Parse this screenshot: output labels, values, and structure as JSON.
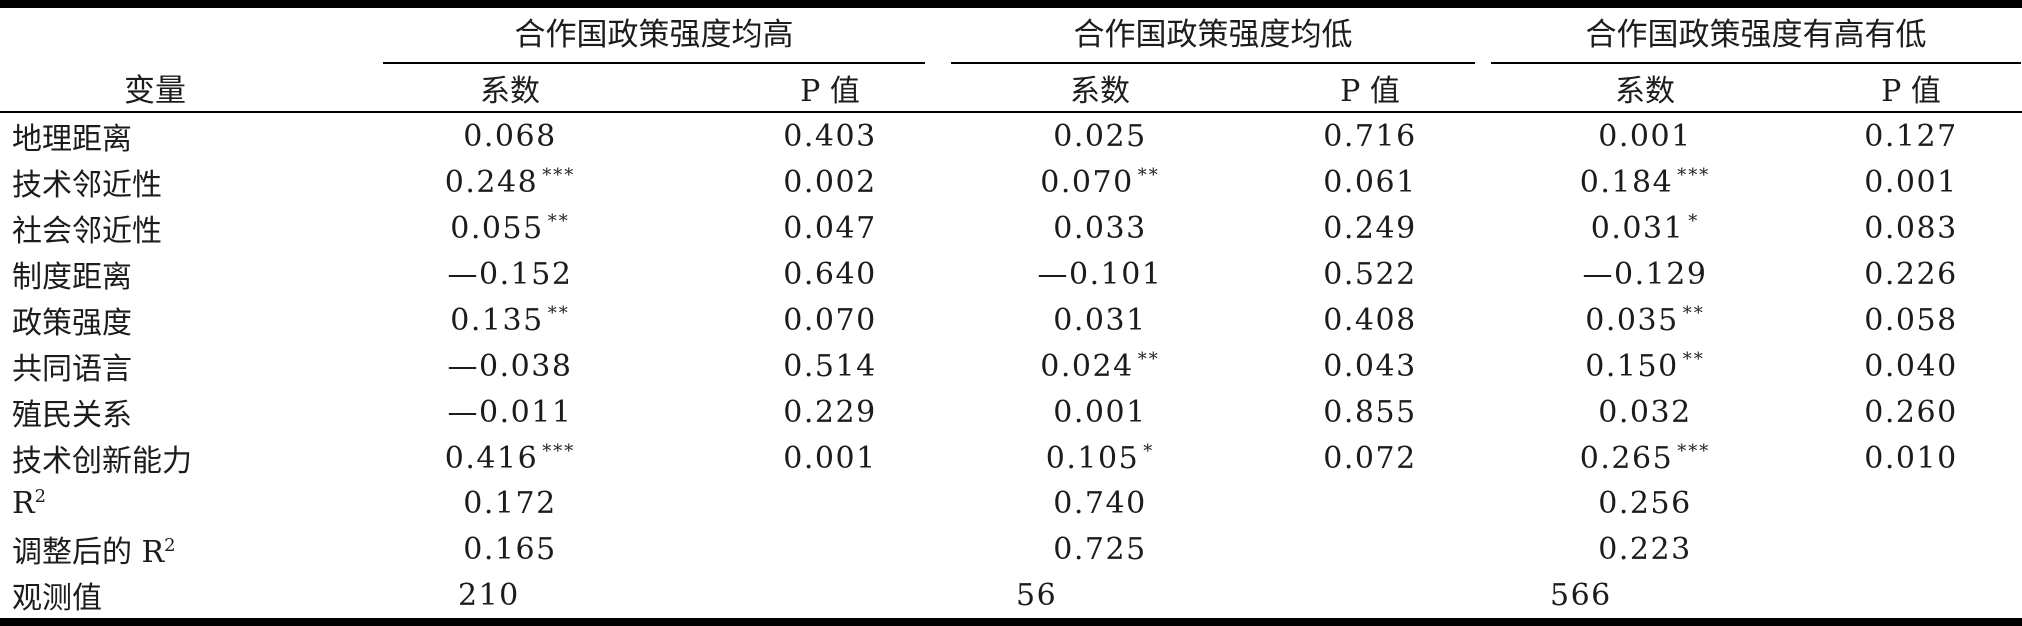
{
  "page": {
    "background": "#ffffff",
    "text_color": "#1c1c1c",
    "rule_color": "#000000"
  },
  "table": {
    "variable_header": "变量",
    "groups": [
      {
        "title": "合作国政策强度均高",
        "coef_label": "系数",
        "p_label": "P 值"
      },
      {
        "title": "合作国政策强度均低",
        "coef_label": "系数",
        "p_label": "P 值"
      },
      {
        "title": "合作国政策强度有高有低",
        "coef_label": "系数",
        "p_label": "P 值"
      }
    ],
    "rows": [
      {
        "label": "地理距离",
        "cells": [
          {
            "v": "0.068",
            "s": ""
          },
          {
            "v": "0.403",
            "s": ""
          },
          {
            "v": "0.025",
            "s": ""
          },
          {
            "v": "0.716",
            "s": ""
          },
          {
            "v": "0.001",
            "s": ""
          },
          {
            "v": "0.127",
            "s": ""
          }
        ]
      },
      {
        "label": "技术邻近性",
        "cells": [
          {
            "v": "0.248",
            "s": "***"
          },
          {
            "v": "0.002",
            "s": ""
          },
          {
            "v": "0.070",
            "s": "**"
          },
          {
            "v": "0.061",
            "s": ""
          },
          {
            "v": "0.184",
            "s": "***"
          },
          {
            "v": "0.001",
            "s": ""
          }
        ]
      },
      {
        "label": "社会邻近性",
        "cells": [
          {
            "v": "0.055",
            "s": "**"
          },
          {
            "v": "0.047",
            "s": ""
          },
          {
            "v": "0.033",
            "s": ""
          },
          {
            "v": "0.249",
            "s": ""
          },
          {
            "v": "0.031",
            "s": "*"
          },
          {
            "v": "0.083",
            "s": ""
          }
        ]
      },
      {
        "label": "制度距离",
        "cells": [
          {
            "v": "—0.152",
            "s": ""
          },
          {
            "v": "0.640",
            "s": ""
          },
          {
            "v": "—0.101",
            "s": ""
          },
          {
            "v": "0.522",
            "s": ""
          },
          {
            "v": "—0.129",
            "s": ""
          },
          {
            "v": "0.226",
            "s": ""
          }
        ]
      },
      {
        "label": "政策强度",
        "cells": [
          {
            "v": "0.135",
            "s": "**"
          },
          {
            "v": "0.070",
            "s": ""
          },
          {
            "v": "0.031",
            "s": ""
          },
          {
            "v": "0.408",
            "s": ""
          },
          {
            "v": "0.035",
            "s": "**"
          },
          {
            "v": "0.058",
            "s": ""
          }
        ]
      },
      {
        "label": "共同语言",
        "cells": [
          {
            "v": "—0.038",
            "s": ""
          },
          {
            "v": "0.514",
            "s": ""
          },
          {
            "v": "0.024",
            "s": "**"
          },
          {
            "v": "0.043",
            "s": ""
          },
          {
            "v": "0.150",
            "s": "**"
          },
          {
            "v": "0.040",
            "s": ""
          }
        ]
      },
      {
        "label": "殖民关系",
        "cells": [
          {
            "v": "—0.011",
            "s": ""
          },
          {
            "v": "0.229",
            "s": ""
          },
          {
            "v": "0.001",
            "s": ""
          },
          {
            "v": "0.855",
            "s": ""
          },
          {
            "v": "0.032",
            "s": ""
          },
          {
            "v": "0.260",
            "s": ""
          }
        ]
      },
      {
        "label": "技术创新能力",
        "cells": [
          {
            "v": "0.416",
            "s": "***"
          },
          {
            "v": "0.001",
            "s": ""
          },
          {
            "v": "0.105",
            "s": "*"
          },
          {
            "v": "0.072",
            "s": ""
          },
          {
            "v": "0.265",
            "s": "***"
          },
          {
            "v": "0.010",
            "s": ""
          }
        ]
      },
      {
        "label": "R",
        "label_sup": "2",
        "cells": [
          {
            "v": "0.172",
            "s": ""
          },
          {
            "v": "",
            "s": ""
          },
          {
            "v": "0.740",
            "s": ""
          },
          {
            "v": "",
            "s": ""
          },
          {
            "v": "0.256",
            "s": ""
          },
          {
            "v": "",
            "s": ""
          }
        ]
      },
      {
        "label": "调整后的 R",
        "label_sup": "2",
        "cells": [
          {
            "v": "0.165",
            "s": ""
          },
          {
            "v": "",
            "s": ""
          },
          {
            "v": "0.725",
            "s": ""
          },
          {
            "v": "",
            "s": ""
          },
          {
            "v": "0.223",
            "s": ""
          },
          {
            "v": "",
            "s": ""
          }
        ]
      },
      {
        "label": "观测值",
        "obs": true,
        "cells": [
          {
            "v": "210",
            "s": ""
          },
          {
            "v": "",
            "s": ""
          },
          {
            "v": "56",
            "s": ""
          },
          {
            "v": "",
            "s": ""
          },
          {
            "v": "566",
            "s": ""
          },
          {
            "v": "",
            "s": ""
          }
        ]
      }
    ]
  }
}
